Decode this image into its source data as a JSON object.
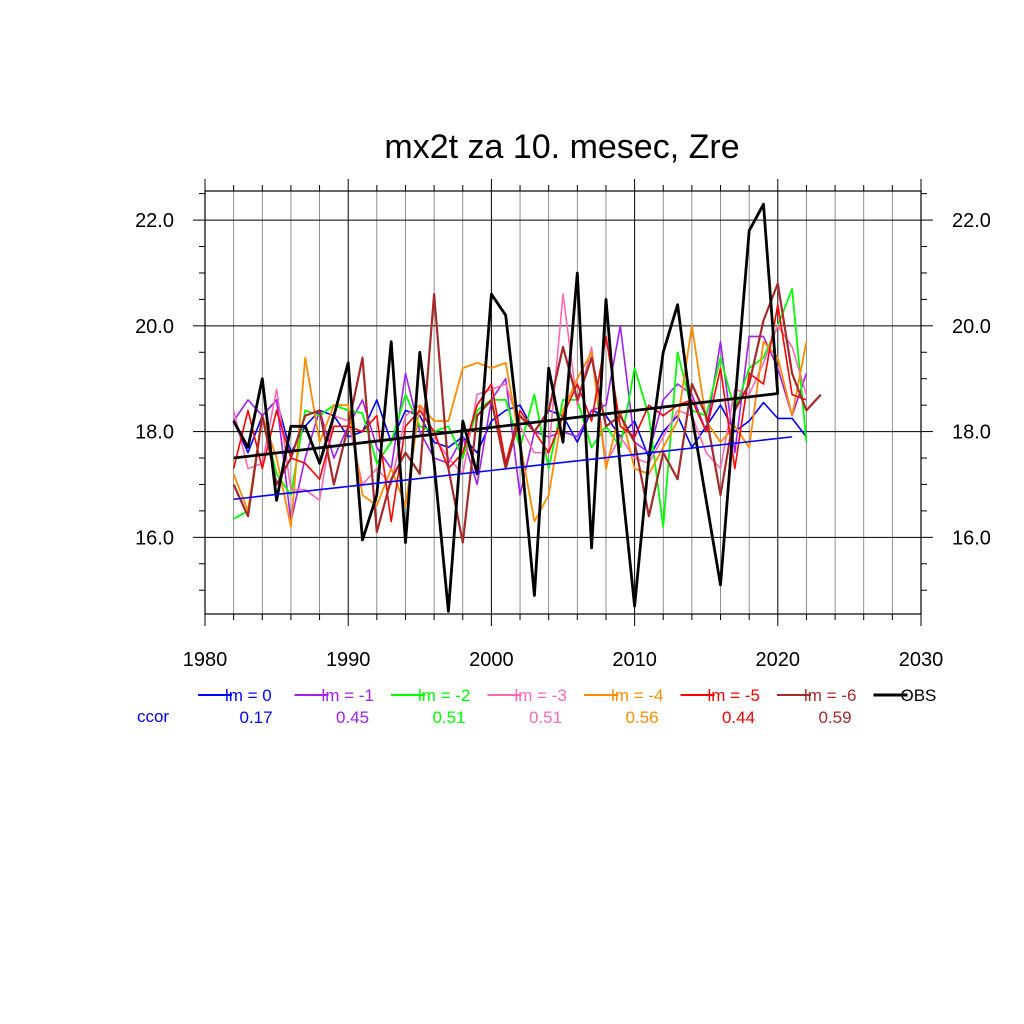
{
  "chart_data": {
    "type": "line",
    "title": "mx2t za 10. mesec, Zre",
    "xlabel": "",
    "ylabel": "",
    "xlim": [
      1980,
      2030
    ],
    "ylim": [
      14.55,
      22.55
    ],
    "x_ticks": [
      1980,
      1990,
      2000,
      2010,
      2020,
      2030
    ],
    "y_ticks": [
      16.0,
      18.0,
      20.0,
      22.0
    ],
    "y_tick_labels": [
      "16.0",
      "18.0",
      "20.0",
      "22.0"
    ],
    "grid": true,
    "ccor_label": "ccor",
    "ccor_color": "#0000ff",
    "series": [
      {
        "name": "lm = 0",
        "color": "#0000ff",
        "width": 1.6,
        "ccor": "0.17",
        "x_start": 1982,
        "values": [
          18.2,
          17.6,
          18.3,
          18.6,
          17.6,
          18.1,
          18.4,
          18.3,
          17.9,
          18.0,
          18.6,
          17.8,
          18.4,
          18.3,
          17.8,
          17.7,
          17.9,
          17.6,
          18.2,
          18.4,
          18.5,
          18.0,
          18.4,
          18.3,
          17.8,
          18.4,
          18.3,
          17.9,
          18.2,
          17.5,
          18.0,
          18.3,
          17.7,
          18.1,
          18.5,
          18.0,
          18.2,
          18.55,
          18.25,
          18.25,
          17.9
        ],
        "trend": {
          "x": [
            1982,
            2021
          ],
          "y": [
            16.72,
            17.9
          ]
        }
      },
      {
        "name": "lm = -1",
        "color": "#a020f0",
        "width": 1.6,
        "ccor": "0.45",
        "x_start": 1982,
        "values": [
          18.2,
          18.6,
          18.3,
          18.6,
          16.3,
          17.5,
          18.4,
          17.5,
          18.1,
          18.6,
          17.7,
          17.3,
          19.1,
          18.0,
          17.5,
          17.4,
          17.9,
          17.0,
          18.6,
          19.0,
          16.8,
          18.0,
          17.9,
          18.0,
          17.9,
          18.4,
          18.5,
          20.0,
          17.8,
          17.6,
          18.6,
          18.9,
          18.7,
          18.0,
          19.7,
          17.6,
          19.8,
          19.8,
          19.2,
          18.3,
          19.1
        ]
      },
      {
        "name": "lm = -2",
        "color": "#00ff00",
        "width": 1.8,
        "ccor": "0.51",
        "x_start": 1982,
        "values": [
          16.35,
          16.5,
          18.3,
          17.2,
          16.8,
          18.4,
          18.3,
          18.5,
          18.4,
          18.35,
          17.4,
          17.8,
          18.7,
          18.1,
          18.0,
          18.1,
          17.5,
          18.4,
          18.6,
          18.6,
          17.7,
          18.7,
          17.3,
          18.6,
          18.6,
          17.7,
          18.1,
          17.7,
          19.2,
          18.3,
          16.2,
          19.5,
          18.4,
          18.3,
          19.4,
          18.4,
          19.2,
          19.4,
          20.0,
          20.7,
          17.8
        ]
      },
      {
        "name": "lm = -3",
        "color": "#ff69b4",
        "width": 1.6,
        "ccor": "0.51",
        "x_start": 1982,
        "values": [
          18.4,
          17.3,
          17.4,
          18.8,
          16.9,
          16.9,
          16.7,
          18.3,
          18.2,
          17.0,
          17.3,
          17.0,
          18.3,
          18.5,
          17.9,
          17.5,
          17.2,
          18.7,
          18.8,
          18.9,
          18.1,
          17.6,
          17.6,
          20.6,
          18.5,
          19.6,
          17.4,
          17.9,
          17.5,
          17.4,
          17.9,
          18.4,
          18.3,
          17.6,
          17.3,
          18.8,
          18.7,
          19.3,
          20.0,
          19.6,
          18.7
        ]
      },
      {
        "name": "lm = -4",
        "color": "#ff8c00",
        "width": 1.8,
        "ccor": "0.56",
        "x_start": 1982,
        "values": [
          17.2,
          16.5,
          18.3,
          17.5,
          16.2,
          19.4,
          17.8,
          18.5,
          18.5,
          16.8,
          16.6,
          17.3,
          16.6,
          18.5,
          18.2,
          18.2,
          19.2,
          19.3,
          19.2,
          19.3,
          17.8,
          16.3,
          16.8,
          18.4,
          19.0,
          19.5,
          17.3,
          18.4,
          17.3,
          17.2,
          17.7,
          18.2,
          20.0,
          18.2,
          17.8,
          18.1,
          17.7,
          19.7,
          19.4,
          18.3,
          19.7
        ]
      },
      {
        "name": "lm = -5",
        "color": "#ff0000",
        "width": 1.6,
        "ccor": "0.44",
        "x_start": 1982,
        "values": [
          17.3,
          18.4,
          17.3,
          18.4,
          17.5,
          17.4,
          17.1,
          18.1,
          18.1,
          18.0,
          18.3,
          16.3,
          18.1,
          18.4,
          18.0,
          17.3,
          17.6,
          18.5,
          18.9,
          17.4,
          18.4,
          18.0,
          17.6,
          18.3,
          18.9,
          18.2,
          19.8,
          18.1,
          17.9,
          18.5,
          18.3,
          18.5,
          18.6,
          18.0,
          19.2,
          17.3,
          19.1,
          18.9,
          20.4,
          18.7,
          18.6
        ]
      },
      {
        "name": "lm = -6",
        "color": "#a52a2a",
        "width": 2.2,
        "ccor": "0.59",
        "x_start": 1982,
        "values": [
          17.0,
          16.4,
          18.3,
          17.0,
          17.5,
          18.3,
          18.4,
          17.0,
          18.1,
          19.4,
          16.1,
          17.1,
          17.6,
          17.2,
          20.6,
          17.3,
          15.9,
          18.3,
          18.6,
          17.3,
          18.3,
          18.0,
          18.4,
          19.6,
          18.6,
          19.4,
          18.1,
          18.3,
          17.8,
          16.4,
          17.6,
          17.1,
          18.9,
          18.3,
          16.8,
          18.4,
          18.9,
          20.1,
          20.8,
          19.1,
          18.4,
          18.7
        ]
      },
      {
        "name": "OBS",
        "color": "#000000",
        "width": 2.8,
        "ccor": "",
        "x_start": 1982,
        "values": [
          18.2,
          17.7,
          19.0,
          16.7,
          18.1,
          18.1,
          17.4,
          18.3,
          19.3,
          15.95,
          16.8,
          19.7,
          15.9,
          19.5,
          17.4,
          14.6,
          18.2,
          17.2,
          20.6,
          20.2,
          17.8,
          14.9,
          19.2,
          17.8,
          21.0,
          15.8,
          20.5,
          17.3,
          14.7,
          17.5,
          19.5,
          20.4,
          18.3,
          16.7,
          15.1,
          18.5,
          21.8,
          22.3,
          18.7
        ],
        "trend": {
          "x": [
            1982,
            2020
          ],
          "y": [
            17.5,
            18.72
          ]
        }
      }
    ]
  }
}
